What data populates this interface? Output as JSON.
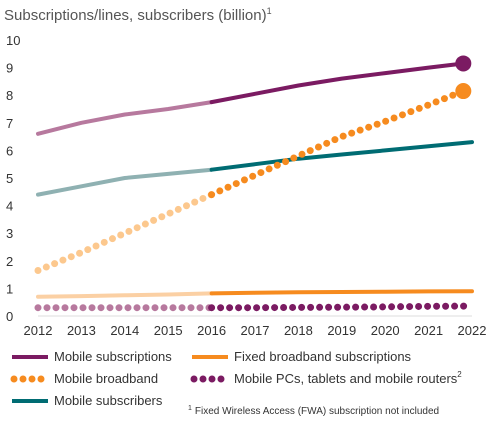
{
  "chart_data": {
    "type": "line",
    "title": "Subscriptions/lines, subscribers (billion)",
    "title_superscript": "1",
    "xlabel": "",
    "ylabel": "",
    "x": [
      2012,
      2013,
      2014,
      2015,
      2016,
      2017,
      2018,
      2019,
      2020,
      2021,
      2022
    ],
    "x_ticks": [
      "2012",
      "2013",
      "2014",
      "2015",
      "2016",
      "2017",
      "2018",
      "2019",
      "2020",
      "2021",
      "2022"
    ],
    "xlim": [
      2012,
      2022
    ],
    "ylim": [
      0,
      10
    ],
    "y_ticks": [
      "0",
      "1",
      "2",
      "3",
      "4",
      "5",
      "6",
      "7",
      "8",
      "9",
      "10"
    ],
    "grid": false,
    "forecast_from": 2016,
    "legend_position": "bottom",
    "series": [
      {
        "name": "Mobile subscriptions",
        "style": "solid",
        "color": "#7b1b62",
        "historical_color": "#b7799e",
        "end_marker": true,
        "points": [
          [
            2012,
            6.6
          ],
          [
            2013,
            7.0
          ],
          [
            2014,
            7.3
          ],
          [
            2015,
            7.5
          ],
          [
            2016,
            7.75
          ],
          [
            2017,
            8.05
          ],
          [
            2018,
            8.35
          ],
          [
            2019,
            8.6
          ],
          [
            2020,
            8.8
          ],
          [
            2021,
            9.0
          ],
          [
            2021.8,
            9.15
          ]
        ]
      },
      {
        "name": "Mobile broadband",
        "style": "dotted",
        "color": "#f68b1f",
        "historical_color": "#fcc88e",
        "end_marker": true,
        "points": [
          [
            2012,
            1.65
          ],
          [
            2013,
            2.3
          ],
          [
            2014,
            3.0
          ],
          [
            2015,
            3.7
          ],
          [
            2016,
            4.4
          ],
          [
            2017,
            5.1
          ],
          [
            2018,
            5.8
          ],
          [
            2019,
            6.5
          ],
          [
            2020,
            7.05
          ],
          [
            2021,
            7.65
          ],
          [
            2021.8,
            8.15
          ]
        ]
      },
      {
        "name": "Mobile subscribers",
        "style": "solid",
        "color": "#006c73",
        "historical_color": "#8fb1b2",
        "end_marker": false,
        "points": [
          [
            2012,
            4.4
          ],
          [
            2013,
            4.7
          ],
          [
            2014,
            5.0
          ],
          [
            2015,
            5.15
          ],
          [
            2016,
            5.3
          ],
          [
            2017,
            5.5
          ],
          [
            2018,
            5.7
          ],
          [
            2019,
            5.85
          ],
          [
            2020,
            6.0
          ],
          [
            2021,
            6.15
          ],
          [
            2022,
            6.3
          ]
        ]
      },
      {
        "name": "Fixed broadband subscriptions",
        "style": "solid",
        "color": "#f68b1f",
        "historical_color": "#fbd0a4",
        "end_marker": false,
        "points": [
          [
            2012,
            0.7
          ],
          [
            2013,
            0.72
          ],
          [
            2014,
            0.75
          ],
          [
            2015,
            0.78
          ],
          [
            2016,
            0.82
          ],
          [
            2017,
            0.84
          ],
          [
            2018,
            0.86
          ],
          [
            2019,
            0.87
          ],
          [
            2020,
            0.88
          ],
          [
            2021,
            0.89
          ],
          [
            2022,
            0.9
          ]
        ]
      },
      {
        "name": "Mobile PCs, tablets and mobile routers",
        "name_superscript": "2",
        "style": "dotted",
        "color": "#7b1b62",
        "historical_color": "#b7799e",
        "end_marker": false,
        "points": [
          [
            2012,
            0.3
          ],
          [
            2013,
            0.3
          ],
          [
            2014,
            0.3
          ],
          [
            2015,
            0.3
          ],
          [
            2016,
            0.3
          ],
          [
            2017,
            0.3
          ],
          [
            2018,
            0.31
          ],
          [
            2019,
            0.32
          ],
          [
            2020,
            0.33
          ],
          [
            2021,
            0.35
          ],
          [
            2022,
            0.36
          ]
        ]
      }
    ],
    "legend_order": [
      0,
      3,
      1,
      4,
      2
    ],
    "footnote": {
      "marker": "1",
      "text": "Fixed Wireless Access (FWA) subscription not included"
    }
  }
}
